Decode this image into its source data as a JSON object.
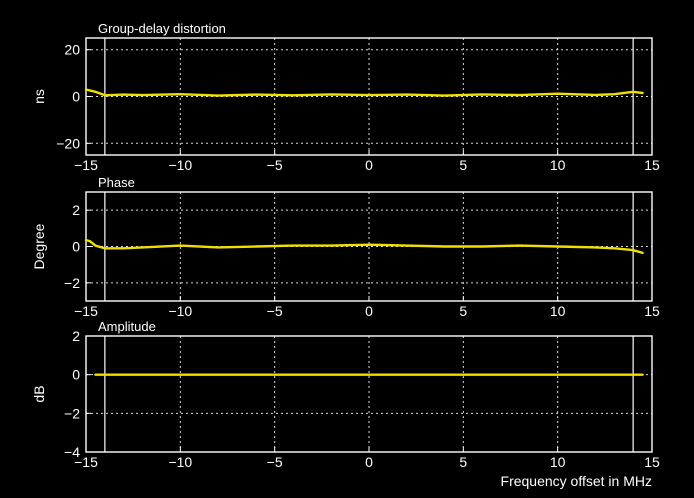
{
  "colors": {
    "background": "#000000",
    "axes": "#ffffff",
    "grid": "#ffffff",
    "trace": "#f0e000"
  },
  "chart_data": [
    {
      "type": "line",
      "title": "Group-delay distortion",
      "xlabel": "",
      "ylabel": "ns",
      "xlim": [
        -15,
        15
      ],
      "ylim": [
        -25,
        25
      ],
      "xticks": [
        -15,
        -10,
        -5,
        0,
        5,
        10,
        15
      ],
      "yticks": [
        20,
        0,
        -20
      ],
      "markers_x": [
        -14,
        14
      ],
      "grid": true,
      "series": [
        {
          "x": [
            -15,
            -14.5,
            -14,
            -13,
            -12,
            -10,
            -8,
            -6,
            -4,
            -2,
            0,
            2,
            4,
            6,
            8,
            10,
            12,
            13,
            14,
            14.5
          ],
          "y": [
            3,
            2,
            0.5,
            0.8,
            0.6,
            1,
            0.4,
            0.8,
            0.5,
            0.9,
            0.6,
            0.8,
            0.4,
            0.9,
            0.6,
            1.2,
            0.7,
            1,
            2,
            1.5
          ]
        }
      ]
    },
    {
      "type": "line",
      "title": "Phase",
      "xlabel": "",
      "ylabel": "Degree",
      "xlim": [
        -15,
        15
      ],
      "ylim": [
        -3,
        3
      ],
      "xticks": [
        -15,
        -10,
        -5,
        0,
        5,
        10,
        15
      ],
      "yticks": [
        2,
        0,
        -2
      ],
      "markers_x": [
        -14,
        14
      ],
      "grid": true,
      "series": [
        {
          "x": [
            -15,
            -14.8,
            -14.5,
            -14,
            -13,
            -12,
            -10,
            -8,
            -6,
            -4,
            -2,
            0,
            2,
            4,
            6,
            8,
            10,
            12,
            13,
            14,
            14.5
          ],
          "y": [
            0.35,
            0.3,
            0.05,
            -0.1,
            -0.1,
            -0.05,
            0.05,
            -0.05,
            0,
            0.05,
            0.05,
            0.1,
            0.05,
            0,
            0,
            0.05,
            0,
            -0.05,
            -0.1,
            -0.2,
            -0.35
          ]
        }
      ]
    },
    {
      "type": "line",
      "title": "Amplitude",
      "xlabel": "Frequency offset in MHz",
      "ylabel": "dB",
      "xlim": [
        -15,
        15
      ],
      "ylim": [
        -4,
        2
      ],
      "xticks": [
        -15,
        -10,
        -5,
        0,
        5,
        10,
        15
      ],
      "yticks": [
        2,
        0,
        -2,
        -4
      ],
      "markers_x": [
        -14,
        14
      ],
      "grid": true,
      "series": [
        {
          "x": [
            -14.5,
            -14,
            -10,
            -5,
            0,
            5,
            10,
            14,
            14.5
          ],
          "y": [
            0,
            0,
            0,
            0,
            0,
            0,
            0,
            0,
            0
          ]
        }
      ]
    }
  ]
}
